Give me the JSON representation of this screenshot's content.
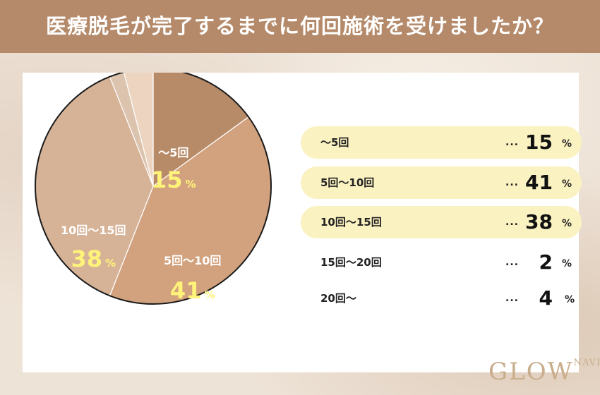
{
  "header": {
    "title": "医療脱毛が完了するまでに何回施術を受けましたか？"
  },
  "logo": {
    "main": "GLOW",
    "sub": "NAVI"
  },
  "chart_data": {
    "type": "pie",
    "title": "医療脱毛が完了するまでに何回施術を受けましたか？",
    "categories": [
      "〜5回",
      "5回〜10回",
      "10回〜15回",
      "15回〜20回",
      "20回〜"
    ],
    "values": [
      15,
      41,
      38,
      2,
      4
    ],
    "unit": "%",
    "colors": [
      "#b88b68",
      "#d2a27e",
      "#d6b397",
      "#dcc3ae",
      "#ecd4c0"
    ],
    "start": "top",
    "direction": "clockwise"
  },
  "pie_labels": [
    {
      "category": "〜5回",
      "value": "15",
      "unit": "%"
    },
    {
      "category": "5回〜10回",
      "value": "41",
      "unit": "%"
    },
    {
      "category": "10回〜15回",
      "value": "38",
      "unit": "%"
    }
  ],
  "legend": [
    {
      "category": "〜5回",
      "value": "15",
      "unit": "%",
      "highlight": true
    },
    {
      "category": "5回〜10回",
      "value": "41",
      "unit": "%",
      "highlight": true
    },
    {
      "category": "10回〜15回",
      "value": "38",
      "unit": "%",
      "highlight": true
    },
    {
      "category": "15回〜20回",
      "value": "2",
      "unit": "%",
      "highlight": false
    },
    {
      "category": "20回〜",
      "value": "4",
      "unit": "%",
      "highlight": false
    }
  ],
  "dots": "..."
}
